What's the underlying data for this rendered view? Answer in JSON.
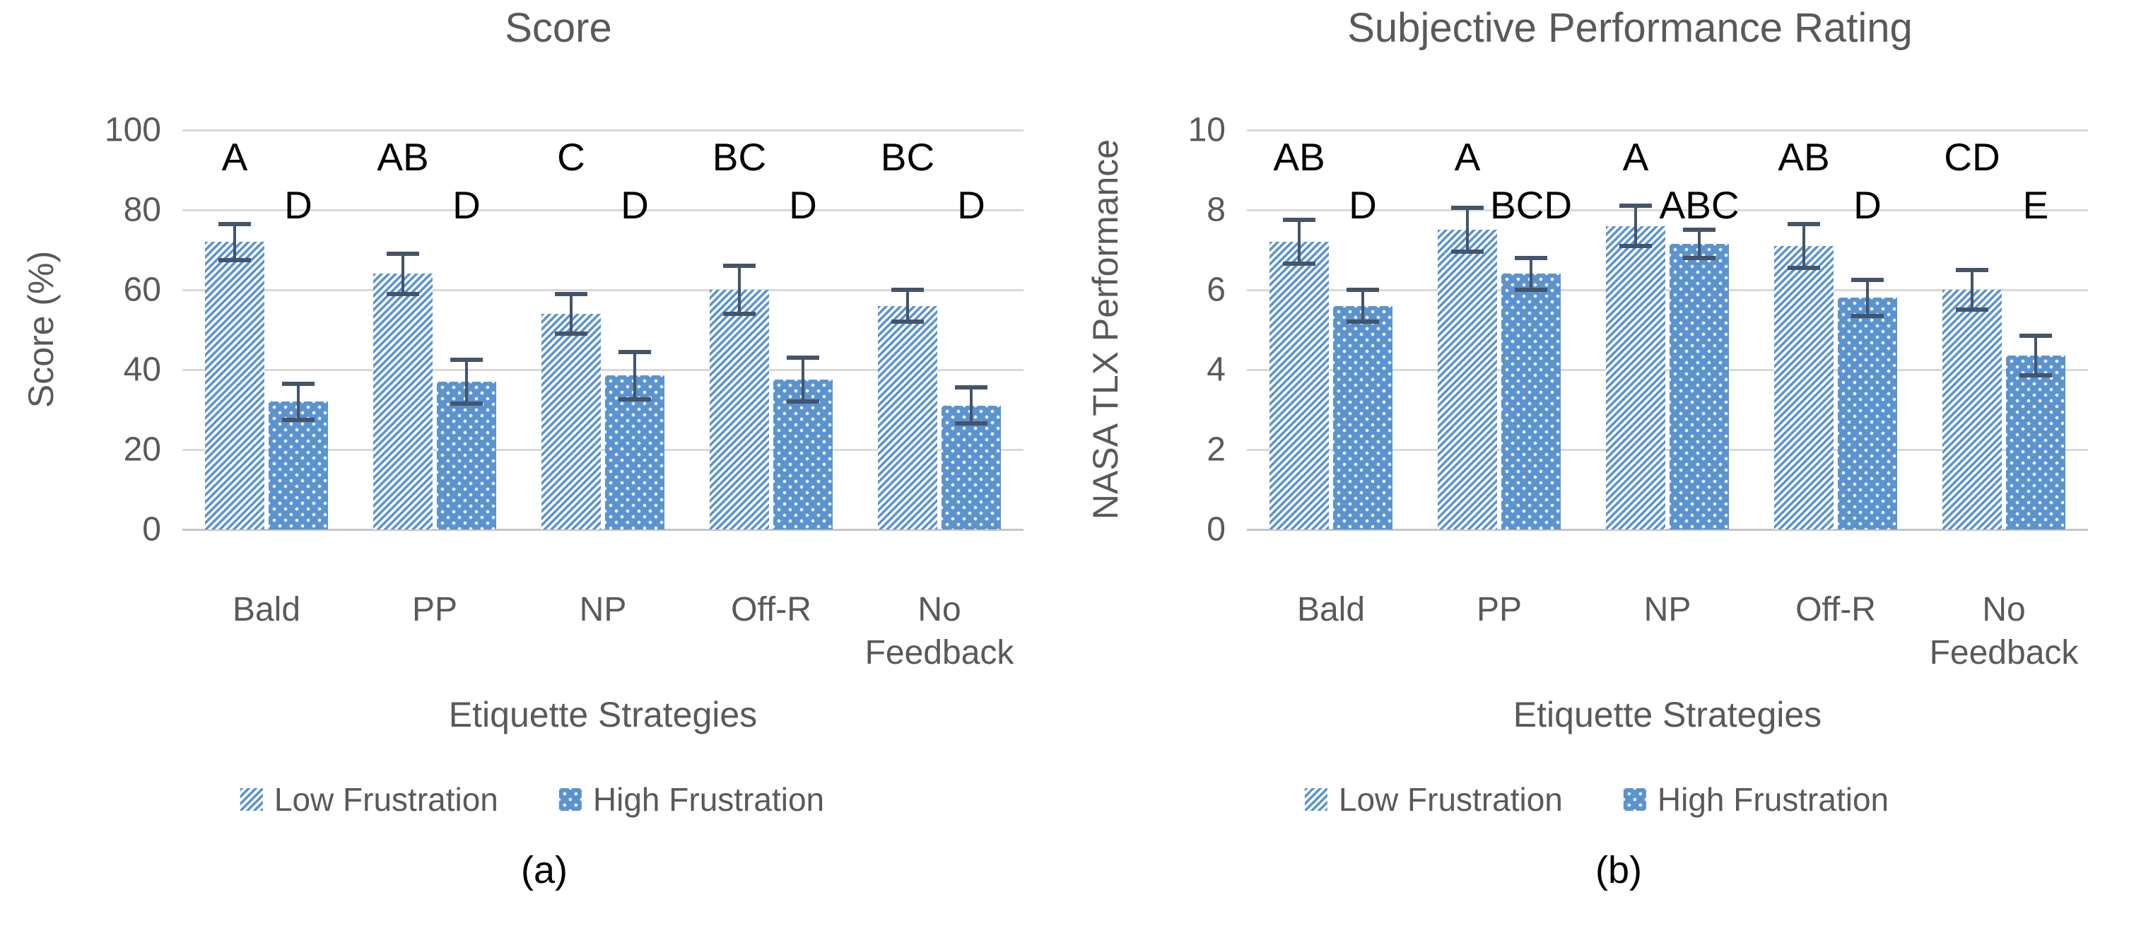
{
  "chart_data": [
    {
      "type": "bar",
      "id": "a",
      "title": "Score",
      "y_label": "Score (%)",
      "x_label": "Etiquette Strategies",
      "caption": "(a)",
      "ylim": [
        0,
        100
      ],
      "y_ticks": [
        0,
        20,
        40,
        60,
        80,
        100
      ],
      "grid": true,
      "legend_position": "bottom",
      "categories": [
        "Bald",
        "PP",
        "NP",
        "Off-R",
        "No Feedback"
      ],
      "series": [
        {
          "name": "Low Frustration",
          "pattern": "diagonal-hatch",
          "values": [
            72,
            64,
            54,
            60,
            56
          ],
          "error_bars": [
            4.5,
            5,
            5,
            6,
            4
          ],
          "sig_letters": [
            "A",
            "AB",
            "C",
            "BC",
            "BC"
          ]
        },
        {
          "name": "High Frustration",
          "pattern": "dotted",
          "values": [
            32,
            37,
            38.5,
            37.5,
            31
          ],
          "error_bars": [
            4.5,
            5.5,
            6,
            5.5,
            4.5
          ],
          "sig_letters": [
            "D",
            "D",
            "D",
            "D",
            "D"
          ]
        }
      ]
    },
    {
      "type": "bar",
      "id": "b",
      "title": "Subjective Performance Rating",
      "y_label": "NASA TLX Performance",
      "x_label": "Etiquette Strategies",
      "caption": "(b)",
      "ylim": [
        0,
        10
      ],
      "y_ticks": [
        0,
        2,
        4,
        6,
        8,
        10
      ],
      "grid": true,
      "legend_position": "bottom",
      "categories": [
        "Bald",
        "PP",
        "NP",
        "Off-R",
        "No Feedback"
      ],
      "series": [
        {
          "name": "Low Frustration",
          "pattern": "diagonal-hatch",
          "values": [
            7.2,
            7.5,
            7.6,
            7.1,
            6.0
          ],
          "error_bars": [
            0.55,
            0.55,
            0.5,
            0.55,
            0.5
          ],
          "sig_letters": [
            "AB",
            "A",
            "A",
            "AB",
            "CD"
          ]
        },
        {
          "name": "High Frustration",
          "pattern": "dotted",
          "values": [
            5.6,
            6.4,
            7.15,
            5.8,
            4.35
          ],
          "error_bars": [
            0.4,
            0.4,
            0.35,
            0.45,
            0.5
          ],
          "sig_letters": [
            "D",
            "BCD",
            "ABC",
            "D",
            "E"
          ]
        }
      ]
    }
  ],
  "colors": {
    "bar_blue": "#5A93D0",
    "gridline": "#D9D9D9",
    "axis_text": "#595959",
    "title_text": "#595959",
    "error_bar": "#44546A",
    "sig_letter": "#000000",
    "background": "#FFFFFF"
  }
}
